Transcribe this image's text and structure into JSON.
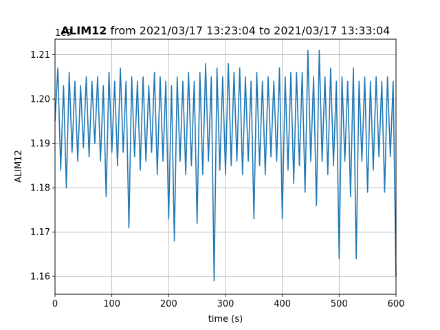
{
  "chart_data": {
    "type": "line",
    "title_bold": "ALIM12",
    "title_rest": " from 2021/03/17 13:23:04 to 2021/03/17 13:33:04",
    "xlabel": "time (s)",
    "ylabel": "ALIM12",
    "offset_label": "1e9",
    "xlim": [
      0,
      600
    ],
    "ylim": [
      1.156,
      1.2135
    ],
    "y_multiplier": "1e9",
    "xticks": [
      0,
      100,
      200,
      300,
      400,
      500,
      600
    ],
    "xtick_labels": [
      "0",
      "100",
      "200",
      "300",
      "400",
      "500",
      "600"
    ],
    "yticks": [
      1.16,
      1.17,
      1.18,
      1.19,
      1.2,
      1.21
    ],
    "ytick_labels": [
      "1.16",
      "1.17",
      "1.18",
      "1.19",
      "1.20",
      "1.21"
    ],
    "grid": true,
    "series": [
      {
        "color": "#1f77b4",
        "x": [
          0,
          5,
          10,
          15,
          20,
          25,
          30,
          35,
          40,
          45,
          50,
          55,
          60,
          65,
          70,
          75,
          80,
          85,
          90,
          95,
          100,
          105,
          110,
          115,
          120,
          125,
          130,
          135,
          140,
          145,
          150,
          155,
          160,
          165,
          170,
          175,
          180,
          185,
          190,
          195,
          200,
          205,
          210,
          215,
          220,
          225,
          230,
          235,
          240,
          245,
          250,
          255,
          260,
          265,
          270,
          275,
          280,
          285,
          290,
          295,
          300,
          305,
          310,
          315,
          320,
          325,
          330,
          335,
          340,
          345,
          350,
          355,
          360,
          365,
          370,
          375,
          380,
          385,
          390,
          395,
          400,
          405,
          410,
          415,
          420,
          425,
          430,
          435,
          440,
          445,
          450,
          455,
          460,
          465,
          470,
          475,
          480,
          485,
          490,
          495,
          500,
          505,
          510,
          515,
          520,
          525,
          530,
          535,
          540,
          545,
          550,
          555,
          560,
          565,
          570,
          575,
          580,
          585,
          590,
          595,
          600
        ],
        "y": [
          1.195,
          1.207,
          1.184,
          1.203,
          1.18,
          1.206,
          1.188,
          1.204,
          1.186,
          1.203,
          1.189,
          1.205,
          1.187,
          1.204,
          1.19,
          1.205,
          1.186,
          1.203,
          1.178,
          1.206,
          1.188,
          1.204,
          1.185,
          1.207,
          1.188,
          1.204,
          1.171,
          1.205,
          1.187,
          1.204,
          1.184,
          1.205,
          1.186,
          1.203,
          1.188,
          1.206,
          1.183,
          1.205,
          1.186,
          1.204,
          1.173,
          1.203,
          1.168,
          1.205,
          1.186,
          1.204,
          1.183,
          1.206,
          1.185,
          1.204,
          1.172,
          1.206,
          1.183,
          1.208,
          1.186,
          1.205,
          1.159,
          1.207,
          1.184,
          1.205,
          1.183,
          1.208,
          1.185,
          1.206,
          1.186,
          1.207,
          1.183,
          1.205,
          1.186,
          1.204,
          1.173,
          1.206,
          1.185,
          1.204,
          1.183,
          1.205,
          1.187,
          1.204,
          1.186,
          1.207,
          1.173,
          1.205,
          1.184,
          1.206,
          1.181,
          1.206,
          1.185,
          1.206,
          1.179,
          1.211,
          1.186,
          1.205,
          1.176,
          1.211,
          1.186,
          1.205,
          1.183,
          1.207,
          1.185,
          1.204,
          1.164,
          1.205,
          1.186,
          1.204,
          1.178,
          1.207,
          1.164,
          1.204,
          1.186,
          1.205,
          1.179,
          1.204,
          1.184,
          1.205,
          1.187,
          1.204,
          1.179,
          1.205,
          1.187,
          1.204,
          1.16
        ]
      }
    ]
  }
}
